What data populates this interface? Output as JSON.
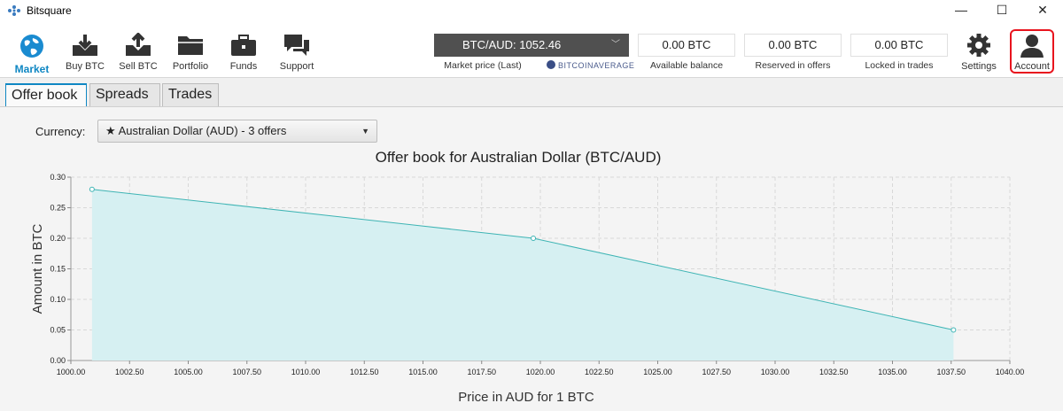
{
  "window": {
    "title": "Bitsquare",
    "controls": {
      "minimize": "—",
      "maximize": "☐",
      "close": "✕"
    }
  },
  "nav": {
    "items": [
      {
        "label": "Market",
        "icon": "globe-icon"
      },
      {
        "label": "Buy BTC",
        "icon": "buy-icon"
      },
      {
        "label": "Sell BTC",
        "icon": "sell-icon"
      },
      {
        "label": "Portfolio",
        "icon": "folder-icon"
      },
      {
        "label": "Funds",
        "icon": "briefcase-icon"
      },
      {
        "label": "Support",
        "icon": "chat-icon"
      }
    ],
    "settings_label": "Settings",
    "account_label": "Account"
  },
  "market_price": {
    "value": "BTC/AUD: 1052.46",
    "label": "Market price (Last)",
    "provider": "BITCOINAVERAGE"
  },
  "balances": [
    {
      "value": "0.00 BTC",
      "label": "Available balance"
    },
    {
      "value": "0.00 BTC",
      "label": "Reserved in offers"
    },
    {
      "value": "0.00 BTC",
      "label": "Locked in trades"
    }
  ],
  "tabs": [
    "Offer book",
    "Spreads",
    "Trades"
  ],
  "currency": {
    "label": "Currency:",
    "selected": "Australian Dollar (AUD) - 3 offers",
    "star": "★"
  },
  "colors": {
    "accent": "#0f87c3",
    "series": "#3eb4b4",
    "fill": "#d6f0f2",
    "highlight": "#e8141e"
  },
  "chart_data": {
    "type": "area",
    "title": "Offer book for Australian Dollar (BTC/AUD)",
    "xlabel": "Price in AUD for 1 BTC",
    "ylabel": "Amount in BTC",
    "xlim": [
      1000,
      1040
    ],
    "ylim": [
      0,
      0.3
    ],
    "x_ticks": [
      "1000.00",
      "1002.50",
      "1005.00",
      "1007.50",
      "1010.00",
      "1012.50",
      "1015.00",
      "1017.50",
      "1020.00",
      "1022.50",
      "1025.00",
      "1027.50",
      "1030.00",
      "1032.50",
      "1035.00",
      "1037.50",
      "1040.00"
    ],
    "y_ticks": [
      "0.00",
      "0.05",
      "0.10",
      "0.15",
      "0.20",
      "0.25",
      "0.30"
    ],
    "grid": true,
    "series": [
      {
        "x": [
          1000.9,
          1019.7,
          1037.6
        ],
        "y": [
          0.28,
          0.2,
          0.05
        ]
      }
    ]
  }
}
